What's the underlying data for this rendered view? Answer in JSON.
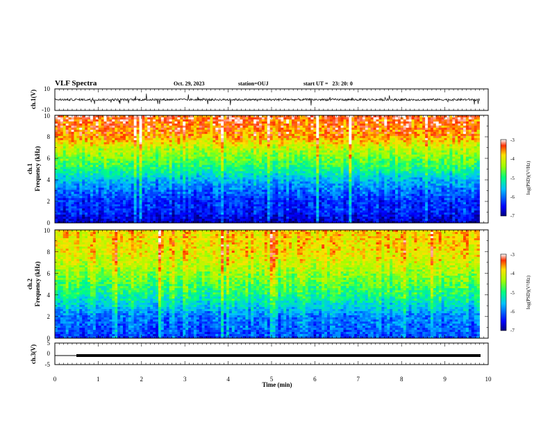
{
  "header": {
    "title": "VLF Spectra",
    "date": "Oct. 29, 2023",
    "station": "station=OUJ",
    "start": "start UT =   23: 20: 0"
  },
  "chart_data": [
    {
      "type": "line",
      "panel": "ch1-waveform",
      "ylabel": "ch.1(V)",
      "ylim": [
        -10,
        10
      ],
      "yticks": [
        "10",
        "-10"
      ],
      "xlim": [
        0,
        10
      ],
      "baseline": 0,
      "noise_amplitude": 2,
      "color": "#000000"
    },
    {
      "type": "heatmap",
      "panel": "ch1-spectrogram",
      "ylabel_line1": "ch.1",
      "ylabel_line2": "Frequency (kHz)",
      "ylim": [
        0,
        10
      ],
      "yticks": [
        "0",
        "2",
        "4",
        "6",
        "8",
        "10"
      ],
      "xlim": [
        0,
        10
      ],
      "data_end_min": 9.8,
      "colorbar": {
        "label": "log(PSD)(V²/Hz)",
        "range": [
          -7,
          -3
        ],
        "ticks": [
          "-3",
          "-4",
          "-5",
          "-6",
          "-7"
        ]
      },
      "profile_khz": [
        [
          0,
          -6.8
        ],
        [
          1,
          -6.4
        ],
        [
          2,
          -6.3
        ],
        [
          3,
          -6.0
        ],
        [
          4,
          -5.6
        ],
        [
          5,
          -5.0
        ],
        [
          6,
          -4.6
        ],
        [
          7,
          -4.2
        ],
        [
          8,
          -3.6
        ],
        [
          10,
          -3.3
        ]
      ]
    },
    {
      "type": "heatmap",
      "panel": "ch2-spectrogram",
      "ylabel_line1": "ch.2",
      "ylabel_line2": "Frequency (kHz)",
      "ylim": [
        0,
        10
      ],
      "yticks": [
        "0",
        "2",
        "4",
        "6",
        "8",
        "10"
      ],
      "xlim": [
        0,
        10
      ],
      "data_end_min": 9.8,
      "colorbar": {
        "label": "log(PSD)(V²/Hz)",
        "range": [
          -7,
          -3
        ],
        "ticks": [
          "-3",
          "-4",
          "-5",
          "-6",
          "-7"
        ]
      },
      "profile_khz": [
        [
          0,
          -6.2
        ],
        [
          1,
          -6.0
        ],
        [
          2,
          -5.9
        ],
        [
          3,
          -5.4
        ],
        [
          4,
          -5.0
        ],
        [
          5,
          -4.7
        ],
        [
          6,
          -4.4
        ],
        [
          7,
          -4.1
        ],
        [
          8,
          -3.9
        ],
        [
          10,
          -3.8
        ]
      ]
    },
    {
      "type": "line",
      "panel": "ch3-waveform",
      "ylabel": "ch.3(V)",
      "ylim": [
        -5,
        5
      ],
      "yticks": [
        "5",
        "0",
        "-5"
      ],
      "xlim": [
        0,
        10
      ],
      "segments": [
        {
          "x": [
            0,
            0.5
          ],
          "y": -0.5,
          "weight": "thin"
        },
        {
          "x": [
            0.5,
            9.8
          ],
          "y": -0.5,
          "weight": "thick"
        }
      ],
      "xlabel": "Time (min)",
      "xticks": [
        "0",
        "1",
        "2",
        "3",
        "4",
        "5",
        "6",
        "7",
        "8",
        "9",
        "10"
      ]
    }
  ]
}
